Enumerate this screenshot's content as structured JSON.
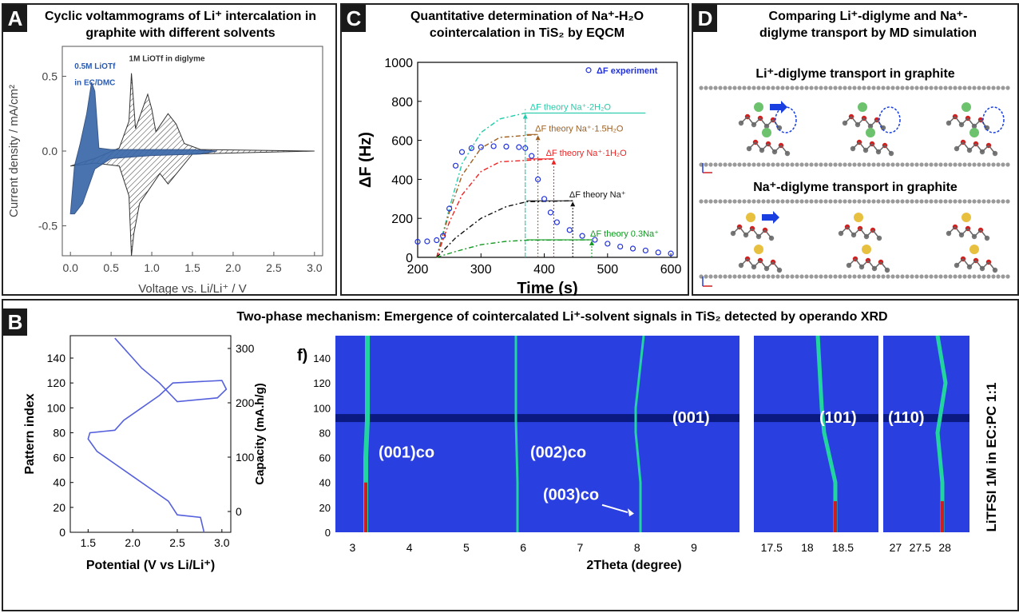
{
  "panels": {
    "A": {
      "letter": "A",
      "title_line1": "Cyclic voltammograms of Li⁺ intercalation in",
      "title_line2": "graphite with different solvents"
    },
    "C": {
      "letter": "C",
      "title_line1": "Quantitative determination of Na⁺-H₂O",
      "title_line2": "cointercalation in TiS₂ by EQCM"
    },
    "D": {
      "letter": "D",
      "title_line1": "Comparing Li⁺-diglyme and Na⁺-",
      "title_line2": "diglyme transport by MD simulation",
      "sub1": "Li⁺-diglyme transport in graphite",
      "sub2": "Na⁺-diglyme transport in graphite"
    },
    "B": {
      "letter": "B",
      "title": "Two-phase mechanism: Emergence of cointercalated Li⁺-solvent signals in TiS₂ detected by operando XRD",
      "f_label": "f)",
      "side_label": "LiTFSI 1M in EC:PC 1:1"
    }
  },
  "colors": {
    "blue_fill": "#3a68a8",
    "marker_blue": "#2233dd",
    "xrd_bg": "#2a3fe0",
    "xrd_peak": "#22d4a0"
  },
  "chart_data": [
    {
      "id": "A",
      "type": "line",
      "xlabel": "Voltage vs. Li/Li⁺ / V",
      "ylabel": "Current density / mA/cm²",
      "xlim": [
        -0.1,
        3.1
      ],
      "ylim": [
        -0.7,
        0.7
      ],
      "xticks": [
        "0.0",
        "0.5",
        "1.0",
        "1.5",
        "2.0",
        "2.5",
        "3.0"
      ],
      "yticks": [
        "-0.5",
        "0.0",
        "0.5"
      ],
      "annotations": [
        "0.5M LiOTf",
        "in EC/DMC",
        "1M LiOTf in diglyme"
      ],
      "series": [
        {
          "name": "0.5M LiOTf in EC/DMC",
          "x": [
            0.0,
            0.05,
            0.12,
            0.2,
            0.26,
            0.3,
            0.35,
            0.5,
            1.0,
            1.5,
            1.8,
            1.6,
            1.0,
            0.5,
            0.3,
            0.15,
            0.05
          ],
          "y": [
            -0.42,
            -0.1,
            0.05,
            0.25,
            0.46,
            0.4,
            0.02,
            0.01,
            0.01,
            0.01,
            0.0,
            -0.02,
            -0.03,
            -0.05,
            -0.12,
            -0.35,
            -0.42
          ]
        },
        {
          "name": "1M LiOTf in diglyme",
          "x": [
            0.0,
            0.3,
            0.6,
            0.72,
            0.75,
            0.8,
            0.95,
            1.0,
            1.05,
            1.2,
            1.3,
            1.4,
            1.6,
            3.0,
            1.5,
            1.2,
            1.1,
            0.85,
            0.78,
            0.75,
            0.72,
            0.6,
            0.3,
            0.0
          ],
          "y": [
            -0.1,
            -0.05,
            0.02,
            0.2,
            0.52,
            0.15,
            0.38,
            0.28,
            0.13,
            0.25,
            0.18,
            0.05,
            0.01,
            0.0,
            -0.02,
            -0.22,
            -0.15,
            -0.35,
            -0.55,
            -0.7,
            -0.3,
            -0.1,
            -0.08,
            -0.1
          ]
        }
      ]
    },
    {
      "id": "C",
      "type": "line",
      "xlabel": "Time (s)",
      "ylabel": "ΔF (Hz)",
      "xlim": [
        200,
        610
      ],
      "ylim": [
        0,
        1000
      ],
      "xticks": [
        "200",
        "300",
        "400",
        "500",
        "600"
      ],
      "yticks": [
        "0",
        "200",
        "400",
        "600",
        "800",
        "1000"
      ],
      "legend": "ΔF experiment",
      "experiment": {
        "x": [
          200,
          215,
          230,
          240,
          250,
          260,
          270,
          285,
          300,
          320,
          340,
          360,
          370,
          380,
          390,
          400,
          410,
          420,
          440,
          460,
          480,
          500,
          520,
          540,
          560,
          580,
          600
        ],
        "y": [
          80,
          82,
          88,
          110,
          250,
          470,
          540,
          560,
          565,
          570,
          568,
          565,
          560,
          520,
          400,
          300,
          230,
          180,
          140,
          110,
          90,
          70,
          55,
          45,
          35,
          25,
          20
        ]
      },
      "theory": [
        {
          "name": "ΔF theory Na⁺·2H₂O",
          "color": "#22ccaa",
          "level": 740,
          "x": [
            230,
            250,
            270,
            300,
            330,
            370
          ],
          "y": [
            0,
            250,
            480,
            640,
            710,
            740
          ]
        },
        {
          "name": "ΔF theory Na⁺·1.5H₂O",
          "color": "#a06020",
          "level": 630,
          "x": [
            230,
            250,
            270,
            300,
            330,
            390
          ],
          "y": [
            0,
            230,
            420,
            560,
            615,
            630
          ]
        },
        {
          "name": "ΔF theory Na⁺·1H₂O",
          "color": "#ee2222",
          "level": 505,
          "x": [
            230,
            250,
            270,
            300,
            330,
            415
          ],
          "y": [
            0,
            180,
            320,
            440,
            490,
            505
          ]
        },
        {
          "name": "ΔF theory Na⁺",
          "color": "#111111",
          "level": 290,
          "x": [
            230,
            260,
            300,
            340,
            372,
            445
          ],
          "y": [
            0,
            100,
            200,
            260,
            285,
            290
          ]
        },
        {
          "name": "ΔF theory 0.3Na⁺",
          "color": "#119922",
          "level": 90,
          "x": [
            230,
            260,
            300,
            340,
            372,
            475
          ],
          "y": [
            0,
            30,
            65,
            82,
            88,
            90
          ]
        }
      ]
    },
    {
      "id": "B-left",
      "type": "line",
      "xlabel": "Potential (V vs Li/Li⁺)",
      "ylabel": "Pattern index",
      "y2label": "Capacity (mA.h/g)",
      "xlim": [
        1.3,
        3.1
      ],
      "ylim": [
        0,
        158
      ],
      "xticks": [
        "1.5",
        "2.0",
        "2.5",
        "3.0"
      ],
      "yticks": [
        "0",
        "20",
        "40",
        "60",
        "80",
        "100",
        "120",
        "140"
      ],
      "y2ticks": [
        "0",
        "100",
        "200",
        "300"
      ],
      "x": [
        2.8,
        2.76,
        2.5,
        2.4,
        2.2,
        2.0,
        1.8,
        1.6,
        1.55,
        1.5,
        1.52,
        1.8,
        1.9,
        2.1,
        2.3,
        2.45,
        3.0,
        3.05,
        2.95,
        2.5,
        2.3,
        2.1,
        2.0,
        1.9,
        1.8
      ],
      "y": [
        0,
        12,
        14,
        25,
        35,
        45,
        55,
        65,
        70,
        75,
        80,
        82,
        90,
        100,
        110,
        120,
        122,
        115,
        108,
        105,
        120,
        132,
        140,
        148,
        156
      ]
    },
    {
      "id": "B-right",
      "type": "heatmap",
      "xlabel": "2Theta (degree)",
      "panels": [
        {
          "xticks": [
            "3",
            "4",
            "5",
            "6",
            "7",
            "8",
            "9"
          ]
        },
        {
          "xticks": [
            "17.5",
            "18",
            "18.5"
          ]
        },
        {
          "xticks": [
            "27",
            "27.5",
            "28"
          ]
        }
      ],
      "yticks": [
        "0",
        "20",
        "40",
        "60",
        "80",
        "100",
        "120",
        "140"
      ],
      "labels": [
        "(001)co",
        "(002)co",
        "(003)co",
        "(001)",
        "(101)",
        "(110)"
      ]
    }
  ]
}
